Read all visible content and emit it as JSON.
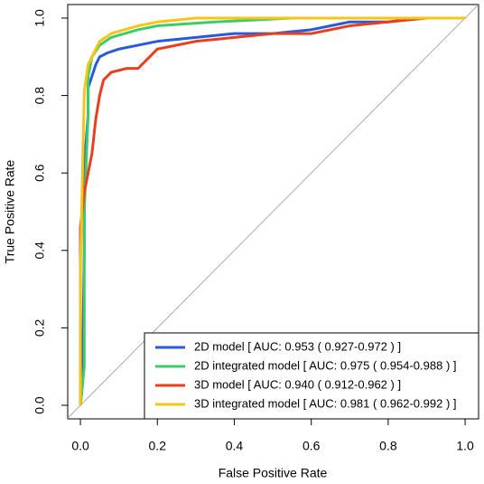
{
  "chart_data": {
    "type": "line",
    "xlabel": "False Positive Rate",
    "ylabel": "True Positive Rate",
    "xlim": [
      -0.033,
      1.035
    ],
    "ylim": [
      -0.035,
      1.035
    ],
    "xticks": [
      {
        "value": 0,
        "label": "0.0"
      },
      0.2,
      0.4,
      0.6,
      0.8,
      {
        "value": 1,
        "label": "1.0"
      }
    ],
    "yticks": [
      {
        "value": 0,
        "label": "0.0"
      },
      0.2,
      0.4,
      0.6,
      0.8,
      {
        "value": 1,
        "label": "1.0"
      }
    ],
    "legend": "bottom-right",
    "series": [
      {
        "name": "2D model [ AUC: 0.953 ( 0.927-0.972 ) ]",
        "color": "#2a5ad8",
        "x": [
          0,
          0.005,
          0.01,
          0.01,
          0.02,
          0.02,
          0.03,
          0.04,
          0.05,
          0.07,
          0.1,
          0.15,
          0.2,
          0.3,
          0.4,
          0.5,
          0.6,
          0.7,
          0.8,
          0.88,
          1
        ],
        "values": [
          0,
          0.05,
          0.4,
          0.62,
          0.75,
          0.82,
          0.85,
          0.88,
          0.9,
          0.91,
          0.92,
          0.93,
          0.94,
          0.95,
          0.96,
          0.96,
          0.97,
          0.99,
          0.99,
          1,
          1
        ]
      },
      {
        "name": "2D integrated model [ AUC: 0.975 ( 0.954-0.988 ) ]",
        "color": "#3dcc6a",
        "x": [
          0,
          0.01,
          0.01,
          0.02,
          0.02,
          0.03,
          0.05,
          0.08,
          0.15,
          0.2,
          0.35,
          0.55,
          1
        ],
        "values": [
          0,
          0.1,
          0.5,
          0.75,
          0.85,
          0.9,
          0.93,
          0.95,
          0.97,
          0.98,
          0.99,
          1,
          1
        ]
      },
      {
        "name": "3D model [ AUC: 0.940 ( 0.912-0.962 ) ]",
        "color": "#e8401c",
        "x": [
          0,
          0,
          0,
          0.01,
          0.02,
          0.03,
          0.04,
          0.05,
          0.06,
          0.08,
          0.12,
          0.15,
          0.18,
          0.2,
          0.3,
          0.4,
          0.5,
          0.6,
          0.7,
          0.8,
          0.9,
          1
        ],
        "values": [
          0,
          0.13,
          0.46,
          0.55,
          0.6,
          0.65,
          0.74,
          0.8,
          0.84,
          0.86,
          0.87,
          0.87,
          0.9,
          0.92,
          0.94,
          0.95,
          0.96,
          0.96,
          0.98,
          0.99,
          1,
          1
        ]
      },
      {
        "name": "3D integrated model [ AUC: 0.981 ( 0.962-0.992 ) ]",
        "color": "#f5c518",
        "x": [
          0,
          0,
          0.01,
          0.02,
          0.03,
          0.05,
          0.08,
          0.15,
          0.2,
          0.3,
          1
        ],
        "values": [
          0,
          0.35,
          0.81,
          0.88,
          0.9,
          0.94,
          0.96,
          0.98,
          0.99,
          1,
          1
        ]
      }
    ]
  }
}
